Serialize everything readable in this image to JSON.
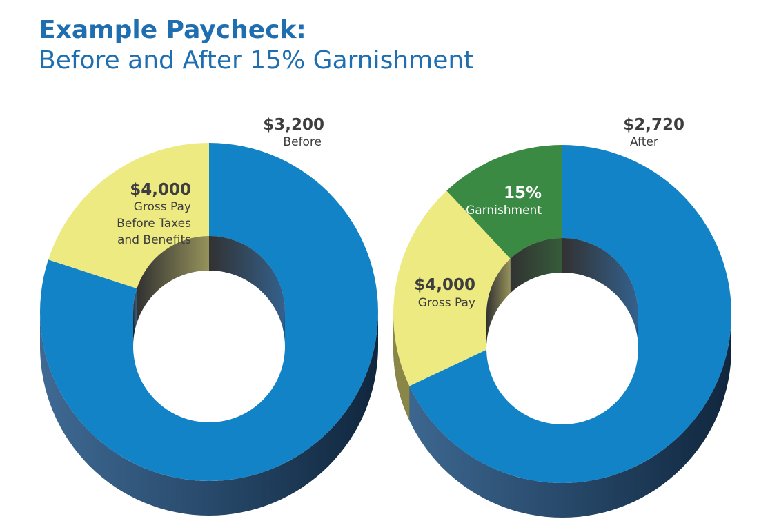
{
  "header": {
    "title": "Example Paycheck:",
    "subtitle": "Before and After 15% Garnishment"
  },
  "colors": {
    "take_home": "#1283c6",
    "take_home_side": "#1d4f80",
    "deductions": "#eeea82",
    "deductions_side": "#8a8648",
    "garnishment": "#3a8a43",
    "garnishment_side": "#1f4a24"
  },
  "chart_data": [
    {
      "type": "pie",
      "style": "3d-donut",
      "segments": [
        {
          "label": "$3,200",
          "sublabel": "Before",
          "value": 3200
        },
        {
          "label": "$4,000",
          "sublabel": "Gross Pay Before Taxes and Benefits",
          "value": 800
        }
      ],
      "total": 4000,
      "labels": {
        "take_home": {
          "value": "$3,200",
          "lines": [
            "Before"
          ]
        },
        "gross": {
          "value": "$4,000",
          "lines": [
            "Gross Pay",
            "Before Taxes",
            "and Benefits"
          ]
        }
      }
    },
    {
      "type": "pie",
      "style": "3d-donut",
      "segments": [
        {
          "label": "$2,720",
          "sublabel": "After",
          "value": 2720
        },
        {
          "label": "$4,000",
          "sublabel": "Gross Pay",
          "value": 800
        },
        {
          "label": "15%",
          "sublabel": "Garnishment",
          "value": 480
        }
      ],
      "total": 4000,
      "labels": {
        "take_home": {
          "value": "$2,720",
          "lines": [
            "After"
          ]
        },
        "gross": {
          "value": "$4,000",
          "lines": [
            "Gross Pay"
          ]
        },
        "garnishment": {
          "value": "15%",
          "lines": [
            "Garnishment"
          ]
        }
      }
    }
  ]
}
